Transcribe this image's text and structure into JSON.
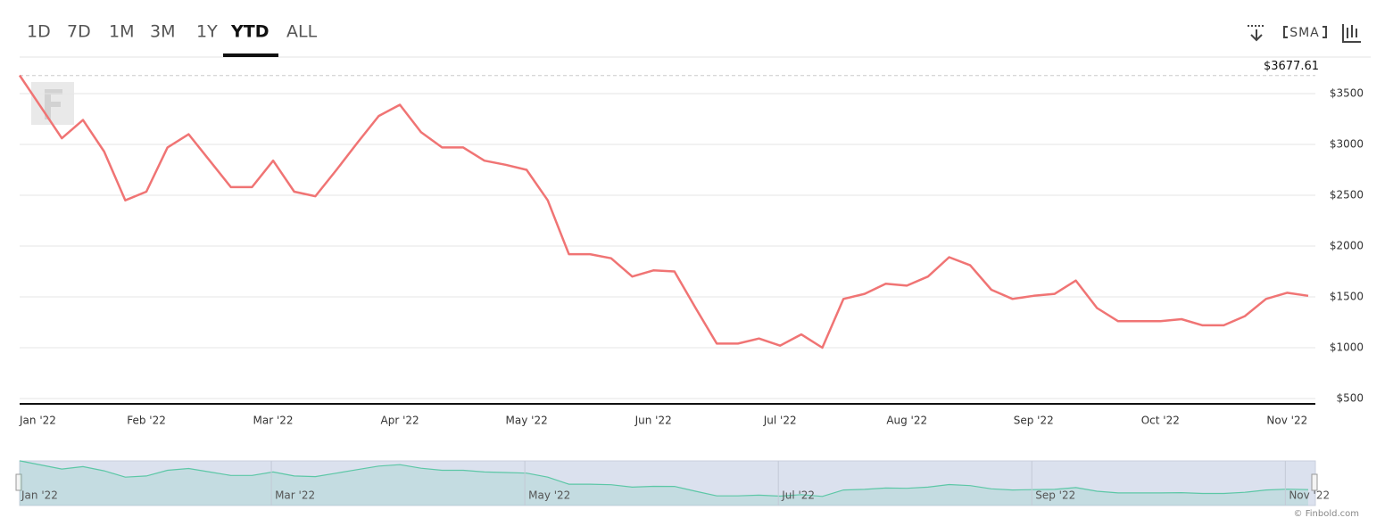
{
  "toolbar": {
    "ranges": [
      "1D",
      "7D",
      "1M",
      "3M",
      "1Y",
      "YTD",
      "ALL"
    ],
    "active_range": "YTD",
    "indicator": "SMA"
  },
  "credit": "© Finbold.com",
  "chart_data": {
    "type": "line",
    "categories": [
      "Jan '22",
      null,
      null,
      null,
      null,
      null,
      "Feb '22",
      null,
      null,
      null,
      null,
      null,
      "Mar '22",
      null,
      null,
      null,
      null,
      null,
      "Apr '22",
      null,
      null,
      null,
      null,
      null,
      "May '22",
      null,
      null,
      null,
      null,
      null,
      "Jun '22",
      null,
      null,
      null,
      null,
      null,
      "Jul '22",
      null,
      null,
      null,
      null,
      null,
      "Aug '22",
      null,
      null,
      null,
      null,
      null,
      "Sep '22",
      null,
      null,
      null,
      null,
      null,
      "Oct '22",
      null,
      null,
      null,
      null,
      null,
      "Nov '22",
      null
    ],
    "series": [
      {
        "color": "#f07474",
        "values": [
          3680,
          3370,
          3060,
          3240,
          2930,
          2450,
          2535,
          2970,
          3100,
          2840,
          2580,
          2580,
          2840,
          2535,
          2490,
          2750,
          3020,
          3280,
          3390,
          3120,
          2970,
          2970,
          2840,
          2800,
          2750,
          2450,
          1920,
          1920,
          1880,
          1700,
          1760,
          1750,
          1390,
          1040,
          1040,
          1090,
          1020,
          1130,
          1000,
          1480,
          1530,
          1630,
          1610,
          1700,
          1890,
          1810,
          1570,
          1480,
          1510,
          1530,
          1660,
          1390,
          1260,
          1260,
          1260,
          1280,
          1220,
          1220,
          1310,
          1480,
          1540,
          1510
        ]
      }
    ],
    "reference_line": {
      "value": 3677.61,
      "label": "$3677.61"
    },
    "ylim": [
      447,
      3807
    ],
    "yticks": [
      {
        "value": 500,
        "label": "$500"
      },
      {
        "value": 1000,
        "label": "$1000"
      },
      {
        "value": 1500,
        "label": "$1500"
      },
      {
        "value": 2000,
        "label": "$2000"
      },
      {
        "value": 2500,
        "label": "$2500"
      },
      {
        "value": 3000,
        "label": "$3000"
      },
      {
        "value": 3500,
        "label": "$3500"
      }
    ],
    "grid": true,
    "navigator_color": "#5cc7a6"
  }
}
